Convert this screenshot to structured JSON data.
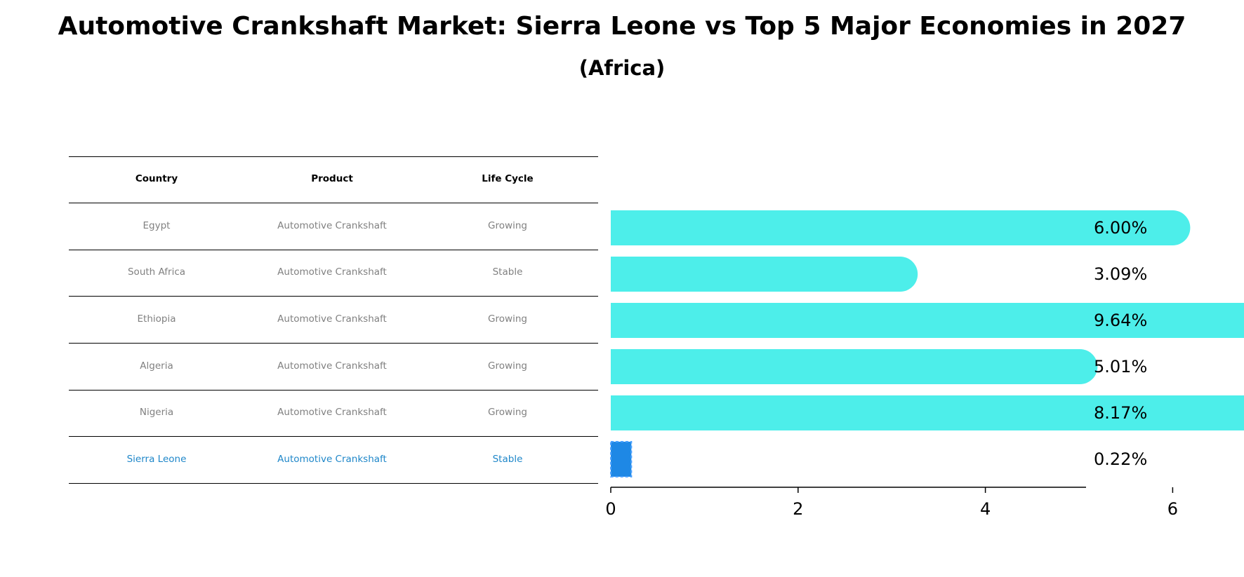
{
  "header": {
    "title": "Automotive Crankshaft Market: Sierra Leone vs Top 5 Major Economies in 2027",
    "subtitle": "(Africa)"
  },
  "table": {
    "columns": [
      "Country",
      "Product",
      "Life Cycle"
    ],
    "rows": [
      {
        "country": "Egypt",
        "product": "Automotive Crankshaft",
        "life_cycle": "Growing"
      },
      {
        "country": "South Africa",
        "product": "Automotive Crankshaft",
        "life_cycle": "Stable"
      },
      {
        "country": "Ethiopia",
        "product": "Automotive Crankshaft",
        "life_cycle": "Growing"
      },
      {
        "country": "Algeria",
        "product": "Automotive Crankshaft",
        "life_cycle": "Growing"
      },
      {
        "country": "Nigeria",
        "product": "Automotive Crankshaft",
        "life_cycle": "Growing"
      },
      {
        "country": "Sierra Leone",
        "product": "Automotive Crankshaft",
        "life_cycle": "Stable"
      }
    ]
  },
  "colors": {
    "bar": "#4deeea",
    "highlight_bar": "#1e88e5",
    "highlight_text": "#1f87c9",
    "row_text": "#808080"
  },
  "chart_data": {
    "type": "bar",
    "orientation": "horizontal",
    "categories": [
      "Egypt",
      "South Africa",
      "Ethiopia",
      "Algeria",
      "Nigeria",
      "Sierra Leone"
    ],
    "values": [
      6.0,
      3.09,
      9.64,
      5.01,
      8.17,
      0.22
    ],
    "value_labels": [
      "6.00%",
      "3.09%",
      "9.64%",
      "5.01%",
      "8.17%",
      "0.22%"
    ],
    "highlight": "Sierra Leone",
    "xlim": [
      0,
      10.1
    ],
    "xticks": [
      0,
      2,
      4,
      6,
      8,
      10
    ],
    "xlabel": "",
    "ylabel": "",
    "grid": false
  }
}
